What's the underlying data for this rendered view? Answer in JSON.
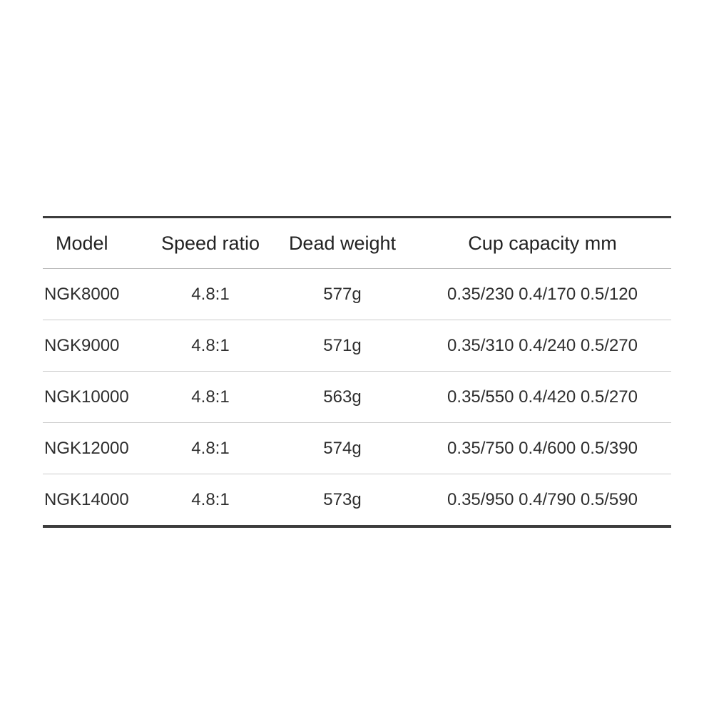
{
  "table": {
    "headers": [
      "Model",
      "Speed ratio",
      "Dead weight",
      "Cup capacity mm"
    ],
    "rows": [
      [
        "NGK8000",
        "4.8:1",
        "577g",
        "0.35/230 0.4/170 0.5/120"
      ],
      [
        "NGK9000",
        "4.8:1",
        "571g",
        "0.35/310 0.4/240 0.5/270"
      ],
      [
        "NGK10000",
        "4.8:1",
        "563g",
        "0.35/550 0.4/420 0.5/270"
      ],
      [
        "NGK12000",
        "4.8:1",
        "574g",
        "0.35/750 0.4/600 0.5/390"
      ],
      [
        "NGK14000",
        "4.8:1",
        "573g",
        "0.35/950 0.4/790 0.5/590"
      ]
    ]
  },
  "chart_data": {
    "type": "table",
    "columns": [
      "Model",
      "Speed ratio",
      "Dead weight",
      "Cup capacity mm"
    ],
    "rows": [
      {
        "model": "NGK8000",
        "speed_ratio": "4.8:1",
        "dead_weight": "577g",
        "cup_capacity_mm": "0.35/230 0.4/170 0.5/120"
      },
      {
        "model": "NGK9000",
        "speed_ratio": "4.8:1",
        "dead_weight": "571g",
        "cup_capacity_mm": "0.35/310 0.4/240 0.5/270"
      },
      {
        "model": "NGK10000",
        "speed_ratio": "4.8:1",
        "dead_weight": "563g",
        "cup_capacity_mm": "0.35/550 0.4/420 0.5/270"
      },
      {
        "model": "NGK12000",
        "speed_ratio": "4.8:1",
        "dead_weight": "574g",
        "cup_capacity_mm": "0.35/750 0.4/600 0.5/390"
      },
      {
        "model": "NGK14000",
        "speed_ratio": "4.8:1",
        "dead_weight": "573g",
        "cup_capacity_mm": "0.35/950 0.4/790 0.5/590"
      }
    ],
    "colors": {
      "text": "#2e2e2e",
      "heavy_rule": "#3d3d3d",
      "light_rule": "#cccccc",
      "background": "#ffffff"
    }
  }
}
